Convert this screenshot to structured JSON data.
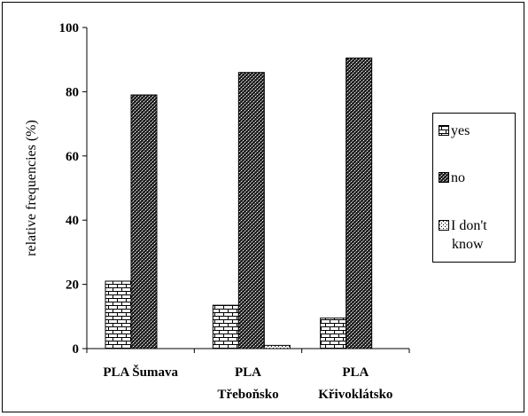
{
  "chart_data": {
    "type": "bar",
    "title": "",
    "xlabel": "",
    "ylabel": "relative frequencies (%)",
    "ylim": [
      0,
      100
    ],
    "yticks": [
      0,
      20,
      40,
      60,
      80,
      100
    ],
    "categories": [
      [
        "PLA Šumava"
      ],
      [
        "PLA",
        "Třeboňsko"
      ],
      [
        "PLA",
        "Křivoklátsko"
      ]
    ],
    "series": [
      {
        "name": "yes",
        "values": [
          21,
          13.5,
          9.5
        ],
        "pattern": "brick",
        "fill": "#ffffff"
      },
      {
        "name": "no",
        "values": [
          79,
          86,
          90.5
        ],
        "pattern": "dense-check",
        "fill": "#444444"
      },
      {
        "name": "I don't know",
        "values": [
          0,
          1,
          0
        ],
        "pattern": "dots",
        "fill": "#ffffff"
      }
    ],
    "grid": false,
    "legend_position": "right"
  },
  "legend": {
    "items": [
      {
        "label": "yes"
      },
      {
        "label": "no"
      },
      {
        "label_lines": [
          "I don't",
          "know"
        ]
      }
    ]
  }
}
